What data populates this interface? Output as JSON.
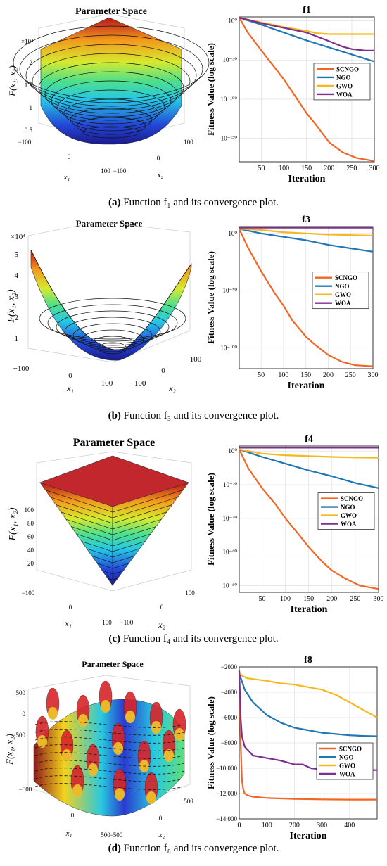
{
  "captions": [
    {
      "letter": "(a)",
      "text": "Function  f₁  and its convergence plot."
    },
    {
      "letter": "(b)",
      "text": "Function  f₃  and its convergence plot."
    },
    {
      "letter": "(c)",
      "text": "Function  f₄  and its convergence plot."
    },
    {
      "letter": "(d)",
      "text": "Function  f₈  and its convergence plot."
    }
  ],
  "surface_panels": [
    {
      "title": "Parameter Space",
      "zlabel": "F(x₁, x₂)",
      "xlabel": "x₁",
      "ylabel": "x₂",
      "z_multiplier": "×10⁴",
      "z_ticks": [
        "0.5",
        "1",
        "1.5",
        "2"
      ],
      "x_ticks": [
        "−100",
        "0",
        "100"
      ],
      "y_ticks": [
        "−100",
        "0",
        "100"
      ],
      "shape": "bowl"
    },
    {
      "title": "Parameter Space",
      "zlabel": "F(x₁, x₂)",
      "xlabel": "x₁",
      "ylabel": "x₂",
      "z_multiplier": "×10⁴",
      "z_ticks": [
        "1",
        "2",
        "3",
        "4",
        "5"
      ],
      "x_ticks": [
        "−100",
        "0",
        "100"
      ],
      "y_ticks": [
        "−100",
        "0",
        "100"
      ],
      "shape": "valley"
    },
    {
      "title": "Parameter Space",
      "zlabel": "F(x₁, x₂)",
      "xlabel": "x₁",
      "ylabel": "x₂",
      "z_multiplier": "",
      "z_ticks": [
        "20",
        "40",
        "60",
        "80",
        "100"
      ],
      "x_ticks": [
        "−100",
        "0",
        "100"
      ],
      "y_ticks": [
        "−100",
        "0",
        "100"
      ],
      "shape": "pyramid"
    },
    {
      "title": "Parameter Space",
      "zlabel": "F(x₁, x₂)",
      "xlabel": "x₁",
      "ylabel": "x₂",
      "z_multiplier": "",
      "z_ticks": [
        "−500",
        "0",
        "500"
      ],
      "x_ticks": [
        "−500",
        "0",
        "500"
      ],
      "y_ticks": [
        "−500",
        "0",
        "500"
      ],
      "shape": "rugged"
    }
  ],
  "chart_data": [
    {
      "type": "line",
      "title": "f1",
      "xlabel": "Iteration",
      "ylabel": "Fitness Value (log scale)",
      "scale": "log",
      "xlim": [
        1,
        300
      ],
      "ylim_exp": [
        -180,
        5
      ],
      "x_ticks": [
        50,
        100,
        150,
        200,
        250,
        300
      ],
      "y_ticks": [
        {
          "exp": 0,
          "label": "10⁰"
        },
        {
          "exp": -50,
          "label": "10⁻⁵⁰"
        },
        {
          "exp": -100,
          "label": "10⁻¹⁰⁰"
        },
        {
          "exp": -150,
          "label": "10⁻¹⁵⁰"
        }
      ],
      "legend": "right",
      "grid": true,
      "series": [
        {
          "name": "SCNGO",
          "color": "#f26522",
          "x": [
            1,
            20,
            50,
            80,
            100,
            120,
            150,
            170,
            200,
            230,
            260,
            300
          ],
          "y_exp": [
            4,
            -15,
            -38,
            -60,
            -75,
            -92,
            -118,
            -132,
            -155,
            -168,
            -175,
            -179
          ]
        },
        {
          "name": "NGO",
          "color": "#1f77b4",
          "x": [
            1,
            50,
            100,
            150,
            200,
            250,
            300
          ],
          "y_exp": [
            4,
            -5,
            -15,
            -25,
            -34,
            -43,
            -52
          ]
        },
        {
          "name": "GWO",
          "color": "#f5b81d",
          "x": [
            1,
            50,
            100,
            150,
            175,
            200,
            250,
            300
          ],
          "y_exp": [
            4,
            -2,
            -8,
            -13,
            -16,
            -17,
            -17,
            -17
          ]
        },
        {
          "name": "WOA",
          "color": "#7e2f8e",
          "x": [
            1,
            50,
            100,
            150,
            200,
            230,
            250,
            280,
            300
          ],
          "y_exp": [
            4,
            -3,
            -9,
            -15,
            -26,
            -33,
            -36,
            -38,
            -38
          ]
        }
      ]
    },
    {
      "type": "line",
      "title": "f3",
      "xlabel": "Iteration",
      "ylabel": "Fitness Value (log scale)",
      "scale": "log",
      "xlim": [
        1,
        300
      ],
      "ylim_exp": [
        -118,
        6
      ],
      "x_ticks": [
        50,
        100,
        150,
        200,
        250,
        300
      ],
      "y_ticks": [
        {
          "exp": 0,
          "label": "10⁰"
        },
        {
          "exp": -50,
          "label": "10⁻⁵⁰"
        },
        {
          "exp": -100,
          "label": "10⁻¹⁰⁰"
        }
      ],
      "legend": "right",
      "grid": true,
      "series": [
        {
          "name": "SCNGO",
          "color": "#f26522",
          "x": [
            1,
            20,
            50,
            80,
            100,
            120,
            150,
            170,
            200,
            230,
            260,
            300
          ],
          "y_exp": [
            4,
            -12,
            -33,
            -52,
            -63,
            -76,
            -90,
            -97,
            -106,
            -112,
            -115,
            -116
          ]
        },
        {
          "name": "NGO",
          "color": "#1f77b4",
          "x": [
            1,
            50,
            100,
            150,
            200,
            250,
            300
          ],
          "y_exp": [
            4,
            0,
            -3,
            -6,
            -10,
            -13,
            -16
          ]
        },
        {
          "name": "GWO",
          "color": "#f5b81d",
          "x": [
            1,
            50,
            100,
            150,
            200,
            250,
            300
          ],
          "y_exp": [
            4,
            3,
            1,
            0,
            -1,
            -1.5,
            -2
          ]
        },
        {
          "name": "WOA",
          "color": "#7e2f8e",
          "x": [
            1,
            300
          ],
          "y_exp": [
            5,
            5
          ]
        }
      ]
    },
    {
      "type": "line",
      "title": "f4",
      "xlabel": "Iteration",
      "ylabel": "Fitness Value (log scale)",
      "scale": "log",
      "xlim": [
        1,
        300
      ],
      "ylim_exp": [
        -84,
        3
      ],
      "x_ticks": [
        50,
        100,
        150,
        200,
        250,
        300
      ],
      "y_ticks": [
        {
          "exp": 0,
          "label": "10⁰"
        },
        {
          "exp": -20,
          "label": "10⁻²⁰"
        },
        {
          "exp": -40,
          "label": "10⁻⁴⁰"
        },
        {
          "exp": -60,
          "label": "10⁻⁶⁰"
        },
        {
          "exp": -80,
          "label": "10⁻⁸⁰"
        }
      ],
      "legend": "right",
      "grid": true,
      "series": [
        {
          "name": "SCNGO",
          "color": "#f26522",
          "x": [
            1,
            20,
            50,
            80,
            100,
            130,
            150,
            180,
            200,
            230,
            260,
            280,
            300
          ],
          "y_exp": [
            1,
            -10,
            -22,
            -32,
            -40,
            -50,
            -57,
            -66,
            -71,
            -76,
            -80,
            -81,
            -82
          ]
        },
        {
          "name": "NGO",
          "color": "#1f77b4",
          "x": [
            1,
            50,
            100,
            150,
            200,
            250,
            300
          ],
          "y_exp": [
            1,
            -3.5,
            -7.5,
            -11.5,
            -15,
            -19,
            -22
          ]
        },
        {
          "name": "GWO",
          "color": "#f5b81d",
          "x": [
            1,
            50,
            100,
            150,
            200,
            250,
            300
          ],
          "y_exp": [
            1,
            -1.5,
            -2.5,
            -3,
            -3.5,
            -3.8,
            -4
          ]
        },
        {
          "name": "WOA",
          "color": "#7e2f8e",
          "x": [
            1,
            300
          ],
          "y_exp": [
            2,
            2
          ]
        }
      ]
    },
    {
      "type": "line",
      "title": "f8",
      "xlabel": "Iteration",
      "ylabel": "Fitness Value (log scale)",
      "scale": "linear",
      "xlim": [
        0,
        500
      ],
      "ylim": [
        -14000,
        -2000
      ],
      "x_ticks": [
        0,
        100,
        200,
        300,
        400
      ],
      "y_ticks": [
        {
          "v": -2000,
          "label": "−2000"
        },
        {
          "v": -4000,
          "label": "−4000"
        },
        {
          "v": -6000,
          "label": "−6000"
        },
        {
          "v": -8000,
          "label": "−8000"
        },
        {
          "v": -10000,
          "label": "−10,000"
        },
        {
          "v": -12000,
          "label": "−12,000"
        },
        {
          "v": -14000,
          "label": "−14,000"
        }
      ],
      "legend": "right",
      "grid": true,
      "series": [
        {
          "name": "SCNGO",
          "color": "#f26522",
          "x": [
            0,
            5,
            10,
            15,
            20,
            30,
            50,
            100,
            200,
            300,
            400,
            500
          ],
          "y": [
            -2300,
            -8000,
            -11000,
            -11700,
            -12000,
            -12150,
            -12250,
            -12350,
            -12420,
            -12460,
            -12480,
            -12480
          ]
        },
        {
          "name": "NGO",
          "color": "#1f77b4",
          "x": [
            0,
            20,
            50,
            100,
            150,
            200,
            250,
            300,
            350,
            400,
            450,
            500
          ],
          "y": [
            -2500,
            -3800,
            -4800,
            -5800,
            -6400,
            -6800,
            -7000,
            -7200,
            -7300,
            -7400,
            -7450,
            -7480
          ]
        },
        {
          "name": "GWO",
          "color": "#f5b81d",
          "x": [
            0,
            10,
            30,
            100,
            150,
            200,
            250,
            300,
            350,
            400,
            450,
            500
          ],
          "y": [
            -2400,
            -2700,
            -2900,
            -3100,
            -3300,
            -3400,
            -3600,
            -3800,
            -4200,
            -4800,
            -5400,
            -6000
          ]
        },
        {
          "name": "WOA",
          "color": "#7e2f8e",
          "x": [
            0,
            5,
            10,
            20,
            50,
            100,
            150,
            200,
            230,
            260,
            300,
            400,
            500
          ],
          "y": [
            -2300,
            -6000,
            -7500,
            -8300,
            -9000,
            -9200,
            -9400,
            -9700,
            -9700,
            -10000,
            -10100,
            -10150,
            -10150
          ]
        }
      ]
    }
  ]
}
